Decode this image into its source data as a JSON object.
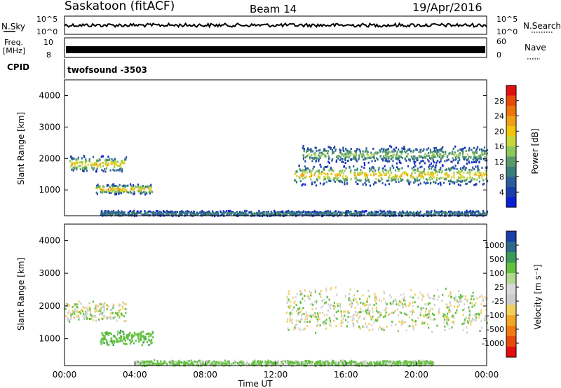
{
  "header": {
    "station": "Saskatoon (fitACF)",
    "beam": "Beam 14",
    "date": "19/Apr/2016"
  },
  "summary_panels": {
    "nsky_label": "N.Sky",
    "nsky_ticks": [
      "10^5",
      "10^0"
    ],
    "nsearch_label": "N.Search",
    "freq_label_1": "Freq.",
    "freq_label_2": "[MHz]",
    "freq_ticks": [
      "10",
      "8"
    ],
    "nave_label": "Nave",
    "nave_ticks": [
      "60",
      "0"
    ],
    "cpid_label": "CPID",
    "cpid_value": "twofsound -3503"
  },
  "colors": {
    "power_scale": [
      "#0a1fd6",
      "#1c3ea8",
      "#2d5c9c",
      "#3a7f7a",
      "#5a9a6a",
      "#8cc85a",
      "#c8d83c",
      "#f2c40e",
      "#f0a018",
      "#ee7410",
      "#e84a0c",
      "#e01010"
    ],
    "velocity_scale": [
      "#e01010",
      "#e84a0c",
      "#f07a14",
      "#f0a828",
      "#f2d060",
      "#cccccc",
      "#d8d8d8",
      "#b0d890",
      "#64c040",
      "#3a9a5a",
      "#2d6a8a",
      "#1c3ea8"
    ]
  },
  "chart_data": [
    {
      "type": "heatmap",
      "name_hint": "power",
      "ylabel": "Slant Range [km]",
      "ylim": [
        180,
        4500
      ],
      "yticks": [
        "1000",
        "2000",
        "3000",
        "4000"
      ],
      "xlim_hours": [
        0,
        24
      ],
      "colorbar_label": "Power [dB]",
      "colorbar_ticks": [
        "28",
        "24",
        "20",
        "16",
        "12",
        "8",
        "4"
      ],
      "colorbar_range": [
        0,
        30
      ],
      "echo_regions": [
        {
          "t_start": "00:15",
          "t_end": "03:30",
          "range_center_km": 1850,
          "range_halfwidth_km": 250,
          "peak_db": 18
        },
        {
          "t_start": "01:45",
          "t_end": "05:00",
          "range_center_km": 1050,
          "range_halfwidth_km": 150,
          "peak_db": 20
        },
        {
          "t_start": "13:00",
          "t_end": "24:00",
          "range_center_km": 1500,
          "range_halfwidth_km": 300,
          "peak_db": 18
        },
        {
          "t_start": "13:30",
          "t_end": "24:00",
          "range_center_km": 2150,
          "range_halfwidth_km": 250,
          "peak_db": 12
        },
        {
          "t_start": "02:00",
          "t_end": "24:00",
          "range_center_km": 280,
          "range_halfwidth_km": 80,
          "peak_db": 8
        }
      ]
    },
    {
      "type": "heatmap",
      "name_hint": "velocity",
      "ylabel": "Slant Range [km]",
      "ylim": [
        180,
        4500
      ],
      "yticks": [
        "1000",
        "2000",
        "3000",
        "4000"
      ],
      "xlabel": "Time UT",
      "xticks": [
        "00:00",
        "04:00",
        "08:00",
        "12:00",
        "16:00",
        "20:00",
        "00:00"
      ],
      "colorbar_label": "Velocity [m s⁻¹]",
      "colorbar_ticks": [
        "1000",
        "500",
        "100",
        "25",
        "-25",
        "-100",
        "-500",
        "-1000"
      ],
      "echo_regions": [
        {
          "t_start": "00:00",
          "t_end": "03:30",
          "range_center_km": 1850,
          "range_halfwidth_km": 300,
          "velocity_ms": 0
        },
        {
          "t_start": "02:00",
          "t_end": "05:00",
          "range_center_km": 1050,
          "range_halfwidth_km": 200,
          "velocity_ms": 150
        },
        {
          "t_start": "12:30",
          "t_end": "24:00",
          "range_center_km": 1900,
          "range_halfwidth_km": 600,
          "velocity_ms": 0
        },
        {
          "t_start": "04:00",
          "t_end": "21:00",
          "range_center_km": 280,
          "range_halfwidth_km": 80,
          "velocity_ms": 50
        }
      ]
    }
  ]
}
